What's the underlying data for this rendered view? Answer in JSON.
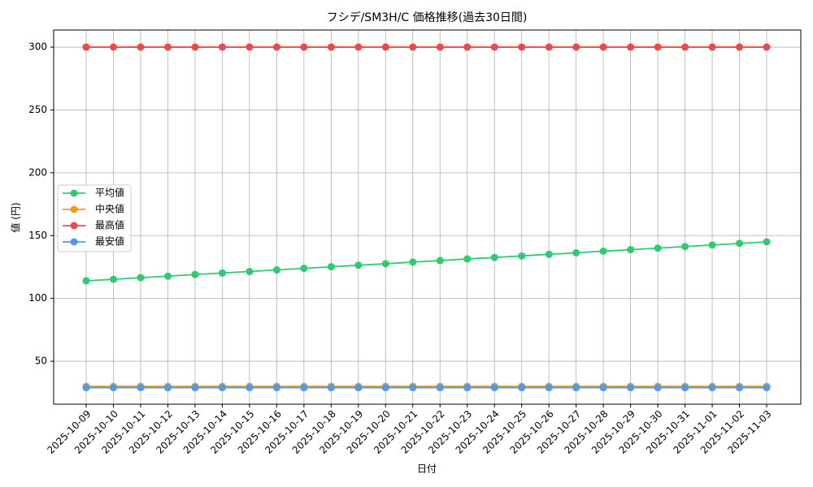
{
  "chart_data": {
    "type": "line",
    "title": "フシデ/SM3H/C 価格推移(過去30日間)",
    "x_label": "日付",
    "y_label": "値 (円)",
    "categories": [
      "2025-10-09",
      "2025-10-10",
      "2025-10-11",
      "2025-10-12",
      "2025-10-13",
      "2025-10-14",
      "2025-10-15",
      "2025-10-16",
      "2025-10-17",
      "2025-10-18",
      "2025-10-19",
      "2025-10-20",
      "2025-10-21",
      "2025-10-22",
      "2025-10-23",
      "2025-10-24",
      "2025-10-25",
      "2025-10-26",
      "2025-10-27",
      "2025-10-28",
      "2025-10-29",
      "2025-10-30",
      "2025-10-31",
      "2025-11-01",
      "2025-11-02",
      "2025-11-03"
    ],
    "series": [
      {
        "name": "平均値",
        "color": "#2ecc71",
        "values": [
          114,
          115.2,
          116.5,
          117.7,
          119,
          120.2,
          121.4,
          122.7,
          123.9,
          125.2,
          126.4,
          127.6,
          128.9,
          130.1,
          131.4,
          132.6,
          133.8,
          135.1,
          136.3,
          137.6,
          138.8,
          140,
          141.3,
          142.5,
          143.8,
          145
        ]
      },
      {
        "name": "中央値",
        "color": "#f39c12",
        "values": [
          30,
          30,
          30,
          30,
          30,
          30,
          30,
          30,
          30,
          30,
          30,
          30,
          30,
          30,
          30,
          30,
          30,
          30,
          30,
          30,
          30,
          30,
          30,
          30,
          30,
          30
        ]
      },
      {
        "name": "最高値",
        "color": "#f04848",
        "values": [
          300,
          300,
          300,
          300,
          300,
          300,
          300,
          300,
          300,
          300,
          300,
          300,
          300,
          300,
          300,
          300,
          300,
          300,
          300,
          300,
          300,
          300,
          300,
          300,
          300,
          300
        ]
      },
      {
        "name": "最安値",
        "color": "#4e9af1",
        "values": [
          29,
          29,
          29,
          29,
          29,
          29,
          29,
          29,
          29,
          29,
          29,
          29,
          29,
          29,
          29,
          29,
          29,
          29,
          29,
          29,
          29,
          29,
          29,
          29,
          29,
          29
        ]
      }
    ],
    "ylim": [
      15.8,
      313.6
    ],
    "yticks": [
      50,
      100,
      150,
      200,
      250,
      300
    ],
    "grid": true,
    "legend": "left"
  }
}
